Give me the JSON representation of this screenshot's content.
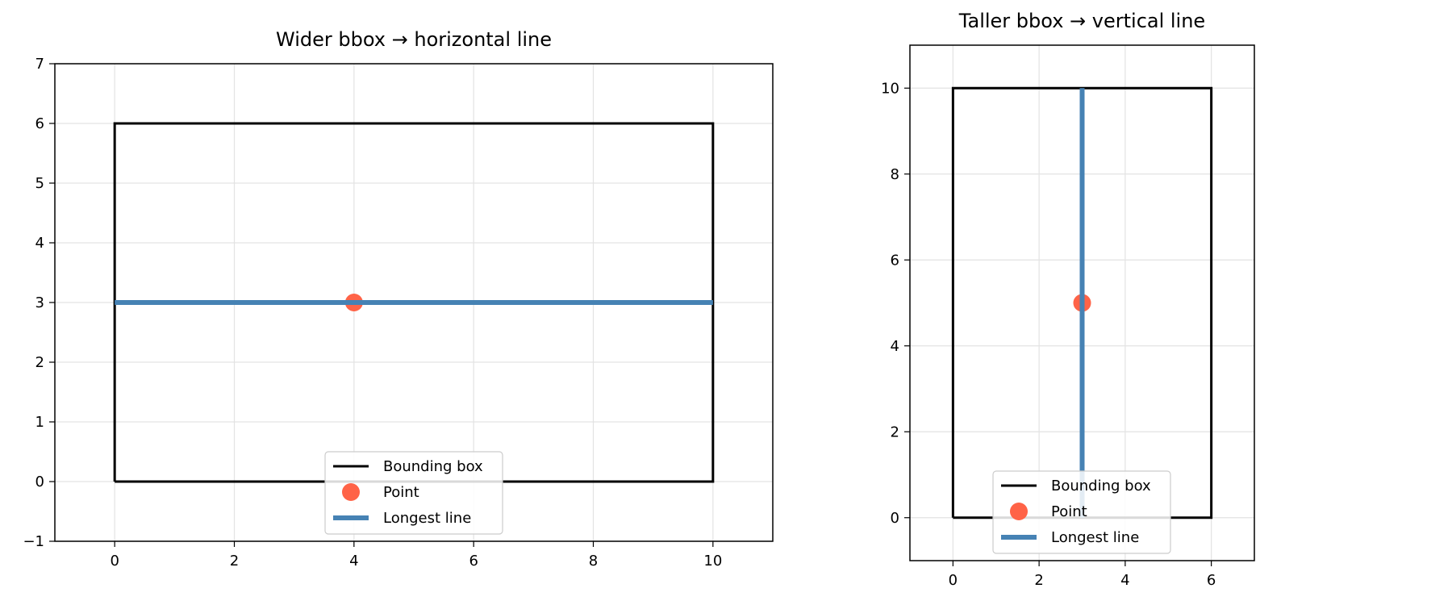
{
  "chart_data": [
    {
      "type": "line",
      "title": "Wider bbox → horizontal line",
      "xlabel": "",
      "ylabel": "",
      "xlim": [
        -1,
        11
      ],
      "ylim": [
        -1,
        7
      ],
      "xticks": [
        0,
        2,
        4,
        6,
        8,
        10
      ],
      "yticks": [
        -1,
        0,
        1,
        2,
        3,
        4,
        5,
        6,
        7
      ],
      "xtick_labels": [
        "0",
        "2",
        "4",
        "6",
        "8",
        "10"
      ],
      "ytick_labels": [
        "−1",
        "0",
        "1",
        "2",
        "3",
        "4",
        "5",
        "6",
        "7"
      ],
      "grid": true,
      "legend_position": "lower center",
      "series": [
        {
          "name": "Bounding box",
          "kind": "line",
          "color": "#000000",
          "x": [
            0,
            10,
            10,
            0,
            0
          ],
          "y": [
            0,
            0,
            6,
            6,
            0
          ]
        },
        {
          "name": "Point",
          "kind": "marker",
          "color": "#ff6347",
          "x": [
            4
          ],
          "y": [
            3
          ]
        },
        {
          "name": "Longest line",
          "kind": "line",
          "color": "#4682b4",
          "x": [
            0,
            10
          ],
          "y": [
            3,
            3
          ]
        }
      ]
    },
    {
      "type": "line",
      "title": "Taller bbox → vertical line",
      "xlabel": "",
      "ylabel": "",
      "xlim": [
        -1,
        7
      ],
      "ylim": [
        -1,
        11
      ],
      "xticks": [
        0,
        2,
        4,
        6
      ],
      "yticks": [
        0,
        2,
        4,
        6,
        8,
        10
      ],
      "xtick_labels": [
        "0",
        "2",
        "4",
        "6"
      ],
      "ytick_labels": [
        "0",
        "2",
        "4",
        "6",
        "8",
        "10"
      ],
      "grid": true,
      "legend_position": "lower center",
      "series": [
        {
          "name": "Bounding box",
          "kind": "line",
          "color": "#000000",
          "x": [
            0,
            6,
            6,
            0,
            0
          ],
          "y": [
            0,
            0,
            10,
            10,
            0
          ]
        },
        {
          "name": "Point",
          "kind": "marker",
          "color": "#ff6347",
          "x": [
            3
          ],
          "y": [
            5
          ]
        },
        {
          "name": "Longest line",
          "kind": "line",
          "color": "#4682b4",
          "x": [
            3,
            3
          ],
          "y": [
            0,
            10
          ]
        }
      ]
    }
  ]
}
